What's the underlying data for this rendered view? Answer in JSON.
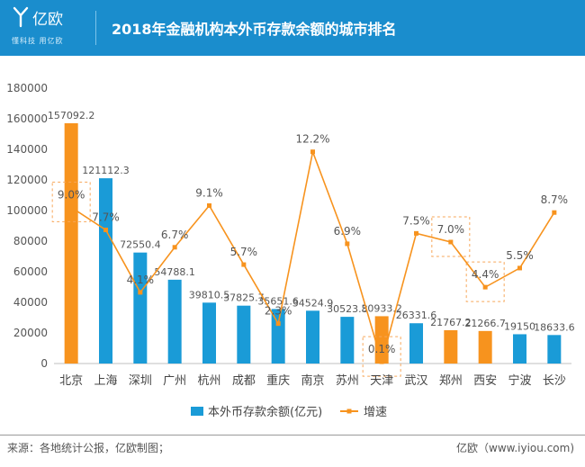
{
  "header": {
    "logo_text": "亿欧",
    "slogan": "懂科技 用亿欧",
    "title": "2018年金融机构本外币存款余额的城市排名"
  },
  "footer": {
    "source": "来源：各地统计公报，亿欧制图；",
    "brand": "亿欧（www.iyiou.com)"
  },
  "colors": {
    "header_bg": "#1a8dcd",
    "bar_blue": "#1a9bd7",
    "bar_orange": "#f7931e",
    "line_orange": "#f7931e",
    "highlight_box": "#f7a75a"
  },
  "chart_data": {
    "type": "bar",
    "categories": [
      "北京",
      "上海",
      "深圳",
      "广州",
      "杭州",
      "成都",
      "重庆",
      "南京",
      "苏州",
      "天津",
      "武汉",
      "郑州",
      "西安",
      "宁波",
      "长沙"
    ],
    "series": [
      {
        "name": "本外币存款余额(亿元)",
        "type": "bar",
        "values": [
          157092.2,
          121112.3,
          72550.4,
          54788.1,
          39810.5,
          37825.7,
          35651.6,
          34524.9,
          30523.8,
          30933.2,
          26331.6,
          21767.2,
          21266.7,
          19150,
          18633.6
        ],
        "labels": [
          "157092.2",
          "121112.3",
          "72550.4",
          "54788.1",
          "39810.5",
          "37825.7",
          "35651.6",
          "34524.9",
          "30523.8",
          "30933.2",
          "26331.6",
          "21767.2",
          "21266.7",
          "19150",
          "18633.6"
        ],
        "highlighted": [
          true,
          false,
          false,
          false,
          false,
          false,
          false,
          false,
          false,
          true,
          false,
          true,
          true,
          false,
          false
        ]
      },
      {
        "name": "增速",
        "type": "line",
        "values": [
          9.0,
          7.7,
          4.1,
          6.7,
          9.1,
          5.7,
          2.3,
          12.2,
          6.9,
          0.1,
          7.5,
          7.0,
          4.4,
          5.5,
          8.7
        ],
        "labels": [
          "9.0%",
          "7.7%",
          "4.1%",
          "6.7%",
          "9.1%",
          "5.7%",
          "2.3%",
          "12.2%",
          "6.9%",
          "0.1%",
          "7.5%",
          "7.0%",
          "4.4%",
          "5.5%",
          "8.7%"
        ],
        "highlight_boxes": [
          0,
          9,
          11,
          12
        ]
      }
    ],
    "yticks": [
      "0",
      "20000",
      "40000",
      "60000",
      "80000",
      "100000",
      "120000",
      "140000",
      "160000",
      "180000"
    ],
    "ylim": [
      0,
      180000
    ],
    "legend_position": "bottom-center"
  }
}
